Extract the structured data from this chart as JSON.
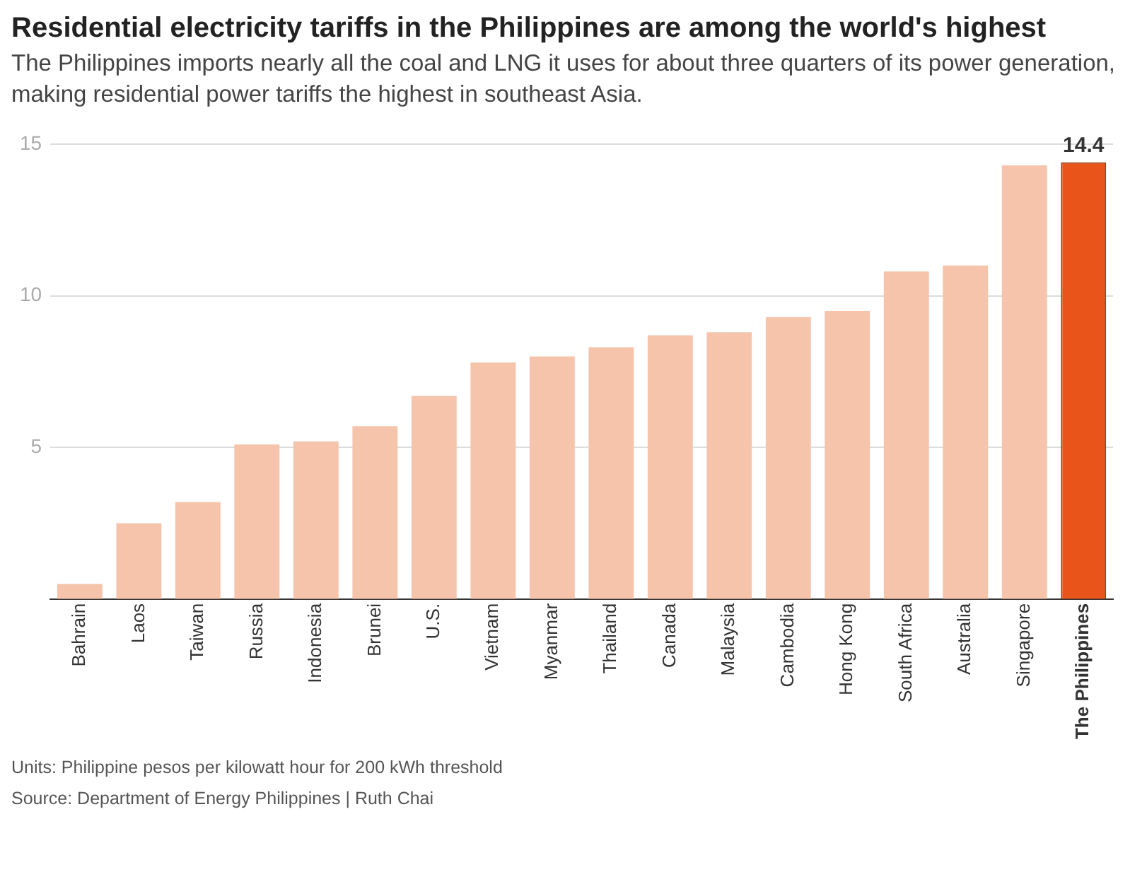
{
  "chart_data": {
    "type": "bar",
    "title": "Residential electricity tariffs in the Philippines are among the world's highest",
    "subtitle": "The Philippines imports nearly all the coal and LNG it uses for about three quarters of its power generation, making residential power tariffs the highest in southeast Asia.",
    "categories": [
      "Bahrain",
      "Laos",
      "Taiwan",
      "Russia",
      "Indonesia",
      "Brunei",
      "U.S.",
      "Vietnam",
      "Myanmar",
      "Thailand",
      "Canada",
      "Malaysia",
      "Cambodia",
      "Hong Kong",
      "South Africa",
      "Australia",
      "Singapore",
      "The Philippines"
    ],
    "values": [
      0.5,
      2.5,
      3.2,
      5.1,
      5.2,
      5.7,
      6.7,
      7.8,
      8.0,
      8.3,
      8.7,
      8.8,
      9.3,
      9.5,
      10.8,
      11.0,
      14.3,
      14.4
    ],
    "colors": [
      "#f5c4aa",
      "#f5c4aa",
      "#f5c4aa",
      "#f5c4aa",
      "#f5c4aa",
      "#f5c4aa",
      "#f5c4aa",
      "#f5c4aa",
      "#f5c4aa",
      "#f5c4aa",
      "#f5c4aa",
      "#f5c4aa",
      "#f5c4aa",
      "#f5c4aa",
      "#f5c4aa",
      "#f5c4aa",
      "#f5c4aa",
      "#e8541a"
    ],
    "value_labels": [
      null,
      null,
      null,
      null,
      null,
      null,
      null,
      null,
      null,
      null,
      null,
      null,
      null,
      null,
      null,
      null,
      null,
      "14.4"
    ],
    "ylim": [
      0,
      15
    ],
    "yticks": [
      5,
      10,
      15
    ],
    "grid": "y",
    "legend": false,
    "annotations": [
      "Units: Philippine pesos per kilowatt hour for 200 kWh threshold",
      "Source: Department of Energy Philippines  | Ruth Chai"
    ]
  }
}
